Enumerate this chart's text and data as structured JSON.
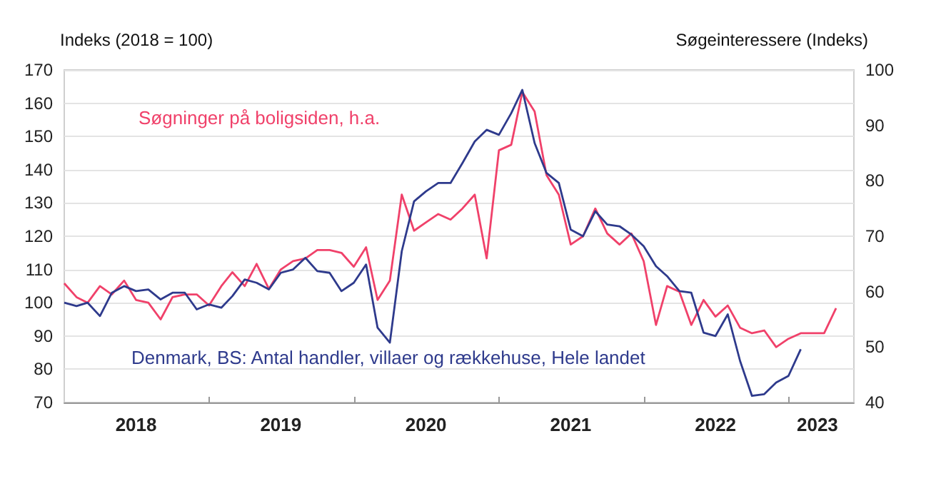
{
  "chart_data": {
    "type": "line",
    "ylabel": "Indeks (2018 = 100)",
    "y2label": "Søgeinteressere (Indeks)",
    "xlim": [
      "2018-01",
      "2023-06-15"
    ],
    "xticks": [
      {
        "value": "2019-01",
        "label": null
      },
      {
        "value": "2020-01",
        "label": null
      },
      {
        "value": "2021-01",
        "label": null
      },
      {
        "value": "2022-01",
        "label": null
      },
      {
        "value": "2023-01",
        "label": null
      },
      {
        "value": "2018-07",
        "label": "2018"
      },
      {
        "value": "2019-07",
        "label": "2019"
      },
      {
        "value": "2020-07",
        "label": "2020"
      },
      {
        "value": "2021-07",
        "label": "2021"
      },
      {
        "value": "2022-07",
        "label": "2022"
      },
      {
        "value": "2023-03-15",
        "label": "2023"
      }
    ],
    "ylim": [
      70,
      170
    ],
    "yticks": [
      70,
      80,
      90,
      100,
      110,
      120,
      130,
      140,
      150,
      160,
      170
    ],
    "y2lim": [
      40,
      100
    ],
    "y2ticks": [
      40,
      50,
      60,
      70,
      80,
      90,
      100
    ],
    "grid": "y",
    "marker": "none",
    "line_style": "solid",
    "series": [
      {
        "name": "Søgninger på boligsiden, h.a.",
        "color": "#f0416a",
        "axis": "y2",
        "x": [
          "2018-01",
          "2018-02",
          "2018-03",
          "2018-04",
          "2018-05",
          "2018-06",
          "2018-07",
          "2018-08",
          "2018-09",
          "2018-10",
          "2018-11",
          "2018-12",
          "2019-01",
          "2019-02",
          "2019-03",
          "2019-04",
          "2019-05",
          "2019-06",
          "2019-07",
          "2019-08",
          "2019-09",
          "2019-10",
          "2019-11",
          "2019-12",
          "2020-01",
          "2020-02",
          "2020-03",
          "2020-04",
          "2020-05",
          "2020-06",
          "2020-07",
          "2020-08",
          "2020-09",
          "2020-10",
          "2020-11",
          "2020-12",
          "2021-01",
          "2021-02",
          "2021-03",
          "2021-04",
          "2021-05",
          "2021-06",
          "2021-07",
          "2021-08",
          "2021-09",
          "2021-10",
          "2021-11",
          "2021-12",
          "2022-01",
          "2022-02",
          "2022-03",
          "2022-04",
          "2022-05",
          "2022-06",
          "2022-07",
          "2022-08",
          "2022-09",
          "2022-10",
          "2022-11",
          "2022-12",
          "2023-01",
          "2023-02",
          "2023-03",
          "2023-04",
          "2023-05"
        ],
        "values": [
          61.5,
          59,
          58,
          61,
          59.5,
          62,
          58.5,
          58,
          55,
          59,
          59.5,
          59.5,
          57.5,
          61,
          63.5,
          61,
          65,
          60.5,
          64,
          65.5,
          66,
          67.5,
          67.5,
          67,
          64.5,
          68,
          58.5,
          62,
          77.5,
          71,
          72.5,
          74,
          73,
          75,
          77.5,
          66,
          85.5,
          86.5,
          96,
          92.5,
          81,
          77.5,
          68.5,
          70,
          75,
          70.5,
          68.5,
          70.5,
          65.5,
          54,
          61,
          60,
          54,
          58.5,
          55.5,
          57.5,
          53.5,
          52.5,
          53,
          50,
          51.5,
          52.5,
          52.5,
          52.5,
          57
        ]
      },
      {
        "name": "Denmark, BS: Antal handler, villaer og rækkehuse, Hele landet",
        "color": "#2e3a8c",
        "x": [
          "2018-01",
          "2018-02",
          "2018-03",
          "2018-04",
          "2018-05",
          "2018-06",
          "2018-07",
          "2018-08",
          "2018-09",
          "2018-10",
          "2018-11",
          "2018-12",
          "2019-01",
          "2019-02",
          "2019-03",
          "2019-04",
          "2019-05",
          "2019-06",
          "2019-07",
          "2019-08",
          "2019-09",
          "2019-10",
          "2019-11",
          "2019-12",
          "2020-01",
          "2020-02",
          "2020-03",
          "2020-04",
          "2020-05",
          "2020-06",
          "2020-07",
          "2020-08",
          "2020-09",
          "2020-10",
          "2020-11",
          "2020-12",
          "2021-01",
          "2021-02",
          "2021-03",
          "2021-04",
          "2021-05",
          "2021-06",
          "2021-07",
          "2021-08",
          "2021-09",
          "2021-10",
          "2021-11",
          "2021-12",
          "2022-01",
          "2022-02",
          "2022-03",
          "2022-04",
          "2022-05",
          "2022-06",
          "2022-07",
          "2022-08",
          "2022-09",
          "2022-10",
          "2022-11",
          "2022-12",
          "2023-01",
          "2023-02"
        ],
        "values": [
          100,
          99,
          100,
          96,
          103,
          105,
          103.5,
          104,
          101,
          103,
          103,
          98,
          99.5,
          98.5,
          102,
          107,
          106,
          104,
          109,
          110,
          113.5,
          109.5,
          109,
          103.5,
          106,
          111.5,
          92.5,
          88,
          115.5,
          130.5,
          133.5,
          136,
          136,
          142,
          148.5,
          152,
          150.5,
          157,
          164,
          148,
          139,
          136,
          122,
          120,
          127.5,
          123.5,
          123,
          120.5,
          117,
          111,
          108,
          103.5,
          103,
          91,
          90,
          96.5,
          82.5,
          72,
          72.5,
          76,
          78,
          86
        ]
      }
    ]
  }
}
